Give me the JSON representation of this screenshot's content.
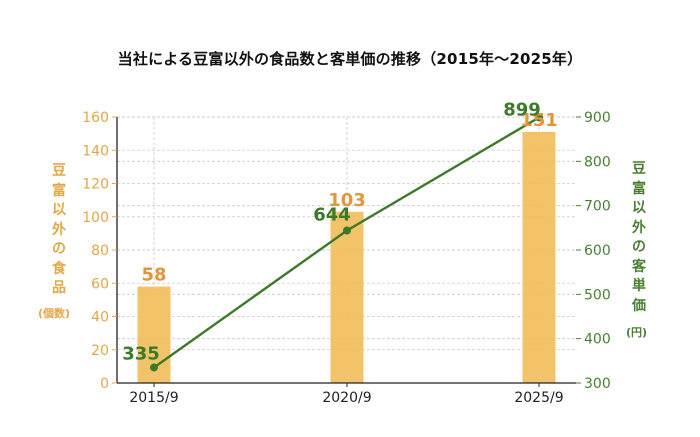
{
  "chart_data": {
    "type": "bar",
    "title": "当社による豆富以外の食品数と客単価の推移（2015年〜2025年）",
    "categories": [
      "2015/9",
      "2020/9",
      "2025/9"
    ],
    "series": [
      {
        "name": "豆富以外の食品 (個数)",
        "type": "bar",
        "axis": "left",
        "values": [
          58,
          103,
          151
        ],
        "color": "#F2BE5C",
        "label_color": "#E0963C"
      },
      {
        "name": "豆富以外の客単価 (円)",
        "type": "line",
        "axis": "right",
        "values": [
          335,
          644,
          899
        ],
        "color": "#3B7A29"
      }
    ],
    "xlabel": "",
    "ylabel_left": "豆富以外の食品 (個数)",
    "ylabel_right": "豆富以外の客単価 (円)",
    "ylim_left": [
      0,
      160
    ],
    "yticks_left": [
      0,
      20,
      40,
      60,
      80,
      100,
      120,
      140,
      160
    ],
    "ylim_right": [
      300,
      900
    ],
    "yticks_right": [
      300,
      400,
      500,
      600,
      700,
      800,
      900
    ],
    "grid": true,
    "legend": null
  },
  "labels": {
    "title": "当社による豆富以外の食品数と客単価の推移（2015年〜2025年）",
    "left_axis_chars": [
      "豆",
      "富",
      "以",
      "外",
      "の",
      "食",
      "品"
    ],
    "left_axis_unit": "(個数)",
    "right_axis_chars": [
      "豆",
      "富",
      "以",
      "外",
      "の",
      "客",
      "単",
      "価"
    ],
    "right_axis_unit": "(円)"
  },
  "colors": {
    "bar": "#F2BE5C",
    "bar_label": "#E0963C",
    "left_axis": "#E3A846",
    "line": "#3B7A29",
    "right_axis": "#4A7F33",
    "grid": "#CCCCCC"
  }
}
